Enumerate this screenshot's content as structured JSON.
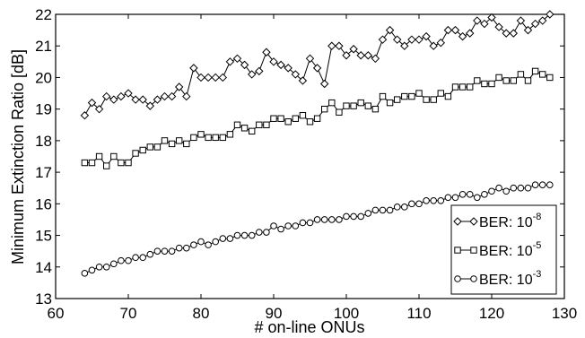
{
  "chart_data": {
    "type": "line",
    "xlabel": "# on-line ONUs",
    "ylabel": "Minimum Extinction Ratio [dB]",
    "xlim": [
      60,
      130
    ],
    "ylim": [
      13,
      22
    ],
    "xticks": [
      60,
      70,
      80,
      90,
      100,
      110,
      120,
      130
    ],
    "yticks": [
      13,
      14,
      15,
      16,
      17,
      18,
      19,
      20,
      21,
      22
    ],
    "grid": false,
    "legend_position": "bottom-right",
    "series": [
      {
        "name": "BER: 10",
        "exponent": "-8",
        "marker": "diamond",
        "x": [
          64,
          65,
          66,
          67,
          68,
          69,
          70,
          71,
          72,
          73,
          74,
          75,
          76,
          77,
          78,
          79,
          80,
          81,
          82,
          83,
          84,
          85,
          86,
          87,
          88,
          89,
          90,
          91,
          92,
          93,
          94,
          95,
          96,
          97,
          98,
          99,
          100,
          101,
          102,
          103,
          104,
          105,
          106,
          107,
          108,
          109,
          110,
          111,
          112,
          113,
          114,
          115,
          116,
          117,
          118,
          119,
          120,
          121,
          122,
          123,
          124,
          125,
          126,
          127,
          128
        ],
        "y": [
          18.8,
          19.2,
          19.0,
          19.4,
          19.3,
          19.4,
          19.5,
          19.3,
          19.3,
          19.1,
          19.3,
          19.4,
          19.4,
          19.7,
          19.4,
          20.3,
          20.0,
          20.0,
          20.0,
          20.0,
          20.5,
          20.6,
          20.4,
          20.1,
          20.2,
          20.8,
          20.5,
          20.4,
          20.3,
          20.1,
          19.9,
          20.6,
          20.3,
          19.8,
          21.0,
          21.0,
          20.7,
          20.9,
          20.7,
          20.7,
          20.6,
          21.2,
          21.5,
          21.2,
          21.0,
          21.2,
          21.2,
          21.3,
          21.0,
          21.1,
          21.5,
          21.5,
          21.3,
          21.4,
          21.8,
          21.7,
          21.9,
          21.6,
          21.4,
          21.4,
          21.8,
          21.5,
          21.7,
          21.8,
          22.0
        ]
      },
      {
        "name": "BER: 10",
        "exponent": "-5",
        "marker": "square",
        "x": [
          64,
          65,
          66,
          67,
          68,
          69,
          70,
          71,
          72,
          73,
          74,
          75,
          76,
          77,
          78,
          79,
          80,
          81,
          82,
          83,
          84,
          85,
          86,
          87,
          88,
          89,
          90,
          91,
          92,
          93,
          94,
          95,
          96,
          97,
          98,
          99,
          100,
          101,
          102,
          103,
          104,
          105,
          106,
          107,
          108,
          109,
          110,
          111,
          112,
          113,
          114,
          115,
          116,
          117,
          118,
          119,
          120,
          121,
          122,
          123,
          124,
          125,
          126,
          127,
          128
        ],
        "y": [
          17.3,
          17.3,
          17.5,
          17.2,
          17.5,
          17.3,
          17.3,
          17.6,
          17.7,
          17.8,
          17.8,
          18.0,
          17.9,
          18.0,
          17.9,
          18.1,
          18.2,
          18.1,
          18.1,
          18.1,
          18.2,
          18.5,
          18.4,
          18.3,
          18.5,
          18.5,
          18.7,
          18.7,
          18.6,
          18.7,
          18.8,
          18.6,
          18.7,
          19.0,
          19.2,
          18.9,
          19.1,
          19.1,
          19.2,
          19.1,
          19.0,
          19.4,
          19.2,
          19.3,
          19.4,
          19.4,
          19.5,
          19.3,
          19.3,
          19.5,
          19.4,
          19.7,
          19.7,
          19.7,
          19.9,
          19.8,
          19.8,
          20.0,
          19.9,
          19.9,
          20.1,
          19.9,
          20.2,
          20.1,
          20.0
        ]
      },
      {
        "name": "BER: 10",
        "exponent": "-3",
        "marker": "circle",
        "x": [
          64,
          65,
          66,
          67,
          68,
          69,
          70,
          71,
          72,
          73,
          74,
          75,
          76,
          77,
          78,
          79,
          80,
          81,
          82,
          83,
          84,
          85,
          86,
          87,
          88,
          89,
          90,
          91,
          92,
          93,
          94,
          95,
          96,
          97,
          98,
          99,
          100,
          101,
          102,
          103,
          104,
          105,
          106,
          107,
          108,
          109,
          110,
          111,
          112,
          113,
          114,
          115,
          116,
          117,
          118,
          119,
          120,
          121,
          122,
          123,
          124,
          125,
          126,
          127,
          128
        ],
        "y": [
          13.8,
          13.9,
          14.0,
          14.0,
          14.1,
          14.2,
          14.2,
          14.3,
          14.3,
          14.4,
          14.5,
          14.5,
          14.5,
          14.6,
          14.6,
          14.7,
          14.8,
          14.7,
          14.8,
          14.9,
          14.9,
          15.0,
          15.0,
          15.0,
          15.1,
          15.1,
          15.3,
          15.2,
          15.3,
          15.3,
          15.4,
          15.4,
          15.5,
          15.5,
          15.5,
          15.5,
          15.6,
          15.6,
          15.6,
          15.7,
          15.8,
          15.8,
          15.8,
          15.9,
          15.9,
          16.0,
          16.0,
          16.1,
          16.1,
          16.1,
          16.2,
          16.2,
          16.3,
          16.3,
          16.2,
          16.3,
          16.4,
          16.5,
          16.4,
          16.5,
          16.5,
          16.5,
          16.6,
          16.6,
          16.6
        ]
      }
    ]
  }
}
